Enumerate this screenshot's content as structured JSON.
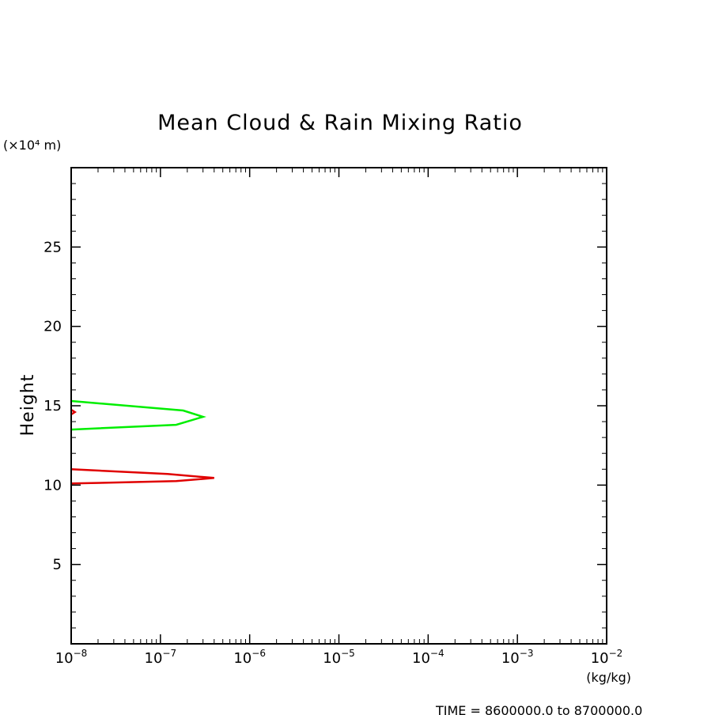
{
  "chart_data": {
    "type": "line",
    "title": "Mean Cloud & Rain Mixing Ratio",
    "ylabel": "Height",
    "yunit": "(×10⁴ m)",
    "xunit": "(kg/kg)",
    "xscale": "log",
    "xlim": [
      1e-08,
      0.01
    ],
    "ylim": [
      0,
      30
    ],
    "x_ticks": [
      {
        "base": "10",
        "exp": "−8"
      },
      {
        "base": "10",
        "exp": "−7"
      },
      {
        "base": "10",
        "exp": "−6"
      },
      {
        "base": "10",
        "exp": "−5"
      },
      {
        "base": "10",
        "exp": "−4"
      },
      {
        "base": "10",
        "exp": "−3"
      },
      {
        "base": "10",
        "exp": "−2"
      }
    ],
    "y_ticks": [
      "5",
      "10",
      "15",
      "20",
      "25"
    ],
    "y_tick_values": [
      5,
      10,
      15,
      20,
      25
    ],
    "grid": false,
    "series": [
      {
        "color": "#00ee00",
        "points": [
          {
            "x": 1e-08,
            "y": 15.3
          },
          {
            "x": 1.8e-07,
            "y": 14.7
          },
          {
            "x": 3e-07,
            "y": 14.3
          },
          {
            "x": 1.5e-07,
            "y": 13.8
          },
          {
            "x": 1e-08,
            "y": 13.5
          }
        ]
      },
      {
        "color": "#e00000",
        "points": [
          {
            "x": 1e-08,
            "y": 11.0
          },
          {
            "x": 1.2e-07,
            "y": 10.7
          },
          {
            "x": 4e-07,
            "y": 10.45
          },
          {
            "x": 1.5e-07,
            "y": 10.25
          },
          {
            "x": 1e-08,
            "y": 10.1
          }
        ]
      },
      {
        "color": "#e00000",
        "points": [
          {
            "x": 1e-08,
            "y": 14.75
          },
          {
            "x": 1.1e-08,
            "y": 14.6
          },
          {
            "x": 1e-08,
            "y": 14.45
          }
        ]
      }
    ]
  },
  "footer": "TIME = 8600000.0 to 8700000.0"
}
